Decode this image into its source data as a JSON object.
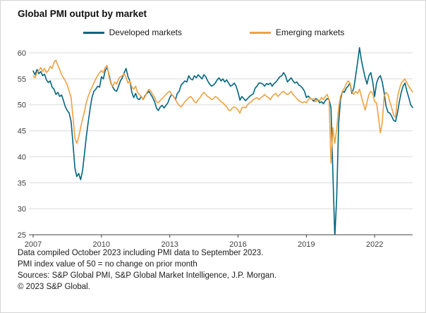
{
  "title": "Global PMI output by market",
  "footnotes": [
    "Data compiled October 2023 including PMI data to September 2023.",
    "PMI index value of 50 = no change on prior month",
    "Sources: S&P Global PMI, S&P Global Market Intelligence, J.P. Morgan.",
    "© 2023 S&P Global."
  ],
  "chart_data": {
    "type": "line",
    "title": "Global PMI output by market",
    "x_start": "2007-01",
    "x_end": "2023-09",
    "x_frequency": "monthly",
    "ylim": [
      25,
      60
    ],
    "y_ticks": [
      25,
      30,
      35,
      40,
      45,
      50,
      55,
      60
    ],
    "x_tick_years": [
      2007,
      2010,
      2013,
      2016,
      2019,
      2022
    ],
    "grid": "horizontal",
    "legend_position": "top",
    "axis_color": "#404040",
    "grid_color": "#d9d9d9",
    "series": [
      {
        "name": "Developed markets",
        "color": "#006580",
        "values": [
          56.5,
          55.8,
          56.8,
          56.0,
          56.4,
          55.6,
          55.9,
          54.8,
          54.3,
          54.6,
          53.4,
          53.0,
          52.0,
          52.4,
          51.6,
          51.9,
          50.8,
          49.6,
          48.9,
          48.4,
          46.8,
          42.5,
          37.8,
          36.2,
          36.8,
          35.6,
          37.2,
          40.4,
          43.8,
          46.6,
          49.2,
          51.4,
          52.6,
          53.0,
          53.6,
          53.4,
          55.4,
          55.0,
          56.6,
          57.2,
          55.8,
          54.2,
          53.4,
          52.8,
          52.6,
          53.6,
          54.6,
          55.2,
          56.2,
          57.0,
          55.4,
          54.6,
          52.4,
          51.4,
          52.2,
          51.2,
          51.0,
          51.6,
          51.0,
          51.8,
          52.2,
          52.6,
          52.0,
          51.4,
          50.6,
          49.4,
          48.9,
          49.6,
          49.9,
          49.4,
          49.9,
          50.4,
          51.4,
          52.0,
          51.6,
          51.0,
          52.2,
          52.6,
          53.8,
          54.2,
          54.6,
          54.4,
          55.6,
          55.0,
          54.8,
          55.6,
          55.2,
          55.8,
          55.4,
          55.0,
          55.8,
          55.4,
          54.6,
          54.0,
          53.6,
          53.8,
          54.2,
          54.8,
          55.2,
          54.6,
          55.0,
          54.4,
          54.8,
          54.2,
          53.6,
          53.8,
          54.2,
          53.6,
          52.4,
          50.9,
          51.6,
          51.2,
          50.8,
          51.2,
          51.6,
          51.9,
          52.1,
          53.2,
          53.6,
          54.2,
          54.2,
          54.0,
          53.6,
          54.1,
          53.9,
          54.2,
          53.6,
          54.1,
          54.4,
          54.9,
          55.4,
          55.6,
          56.2,
          55.6,
          54.4,
          54.8,
          55.2,
          54.6,
          54.2,
          54.4,
          53.8,
          53.6,
          53.2,
          52.6,
          51.4,
          51.7,
          51.3,
          51.0,
          50.7,
          51.2,
          51.0,
          50.4,
          50.6,
          50.2,
          50.8,
          51.2,
          51.0,
          49.4,
          36.8,
          24.5,
          32.2,
          46.4,
          51.0,
          52.6,
          52.4,
          53.2,
          53.6,
          54.2,
          52.2,
          53.2,
          55.6,
          58.2,
          61.0,
          58.6,
          56.8,
          55.2,
          54.0,
          55.6,
          56.2,
          54.4,
          51.6,
          54.2,
          55.2,
          55.6,
          54.4,
          52.4,
          49.8,
          48.6,
          48.4,
          47.8,
          47.0,
          46.8,
          48.4,
          50.6,
          52.4,
          53.6,
          54.2,
          52.6,
          51.4,
          50.0,
          49.5
        ]
      },
      {
        "name": "Emerging markets",
        "color": "#efa13e",
        "values": [
          55.6,
          55.2,
          56.2,
          56.6,
          57.2,
          56.4,
          57.0,
          56.2,
          56.6,
          57.4,
          57.0,
          58.2,
          58.6,
          57.6,
          56.8,
          55.8,
          55.2,
          54.6,
          53.8,
          52.6,
          51.4,
          47.6,
          43.6,
          42.6,
          43.8,
          45.6,
          47.2,
          48.6,
          50.4,
          51.6,
          52.6,
          53.4,
          54.2,
          55.0,
          55.6,
          56.2,
          56.6,
          56.2,
          57.2,
          57.6,
          55.4,
          54.0,
          53.6,
          54.4,
          54.0,
          55.0,
          55.4,
          55.6,
          56.0,
          55.2,
          54.2,
          54.6,
          53.4,
          53.0,
          53.6,
          52.4,
          52.0,
          51.6,
          51.0,
          51.6,
          52.4,
          53.0,
          52.6,
          52.0,
          51.4,
          50.6,
          50.4,
          50.9,
          51.2,
          51.6,
          52.0,
          52.4,
          52.6,
          52.0,
          51.6,
          51.0,
          50.4,
          49.9,
          49.6,
          50.1,
          50.6,
          51.0,
          51.4,
          51.6,
          51.2,
          50.6,
          50.4,
          51.0,
          51.4,
          52.0,
          52.4,
          52.0,
          51.6,
          51.4,
          51.0,
          51.2,
          51.6,
          51.4,
          51.0,
          50.6,
          50.4,
          50.0,
          49.6,
          49.0,
          48.9,
          49.4,
          49.6,
          49.4,
          49.0,
          48.4,
          49.4,
          49.6,
          49.4,
          50.0,
          50.4,
          50.6,
          51.0,
          51.2,
          51.4,
          51.0,
          51.4,
          51.6,
          52.0,
          51.6,
          51.4,
          51.0,
          51.6,
          52.0,
          52.2,
          51.6,
          52.0,
          52.4,
          52.6,
          52.2,
          52.0,
          52.2,
          52.6,
          52.0,
          51.6,
          51.2,
          50.8,
          50.6,
          50.4,
          50.6,
          50.4,
          51.0,
          51.4,
          51.0,
          51.2,
          50.6,
          51.0,
          50.8,
          51.4,
          51.0,
          51.6,
          52.0,
          51.0,
          38.8,
          45.6,
          42.6,
          45.4,
          49.4,
          51.6,
          52.6,
          53.2,
          54.0,
          54.6,
          54.2,
          52.6,
          52.0,
          52.6,
          52.2,
          53.0,
          51.6,
          50.2,
          49.0,
          50.6,
          52.0,
          52.6,
          52.2,
          50.6,
          50.4,
          47.6,
          44.6,
          46.6,
          51.6,
          52.4,
          52.0,
          50.6,
          49.4,
          48.0,
          47.6,
          51.4,
          53.0,
          54.2,
          54.6,
          55.0,
          54.2,
          53.6,
          53.0,
          52.5
        ]
      }
    ]
  }
}
